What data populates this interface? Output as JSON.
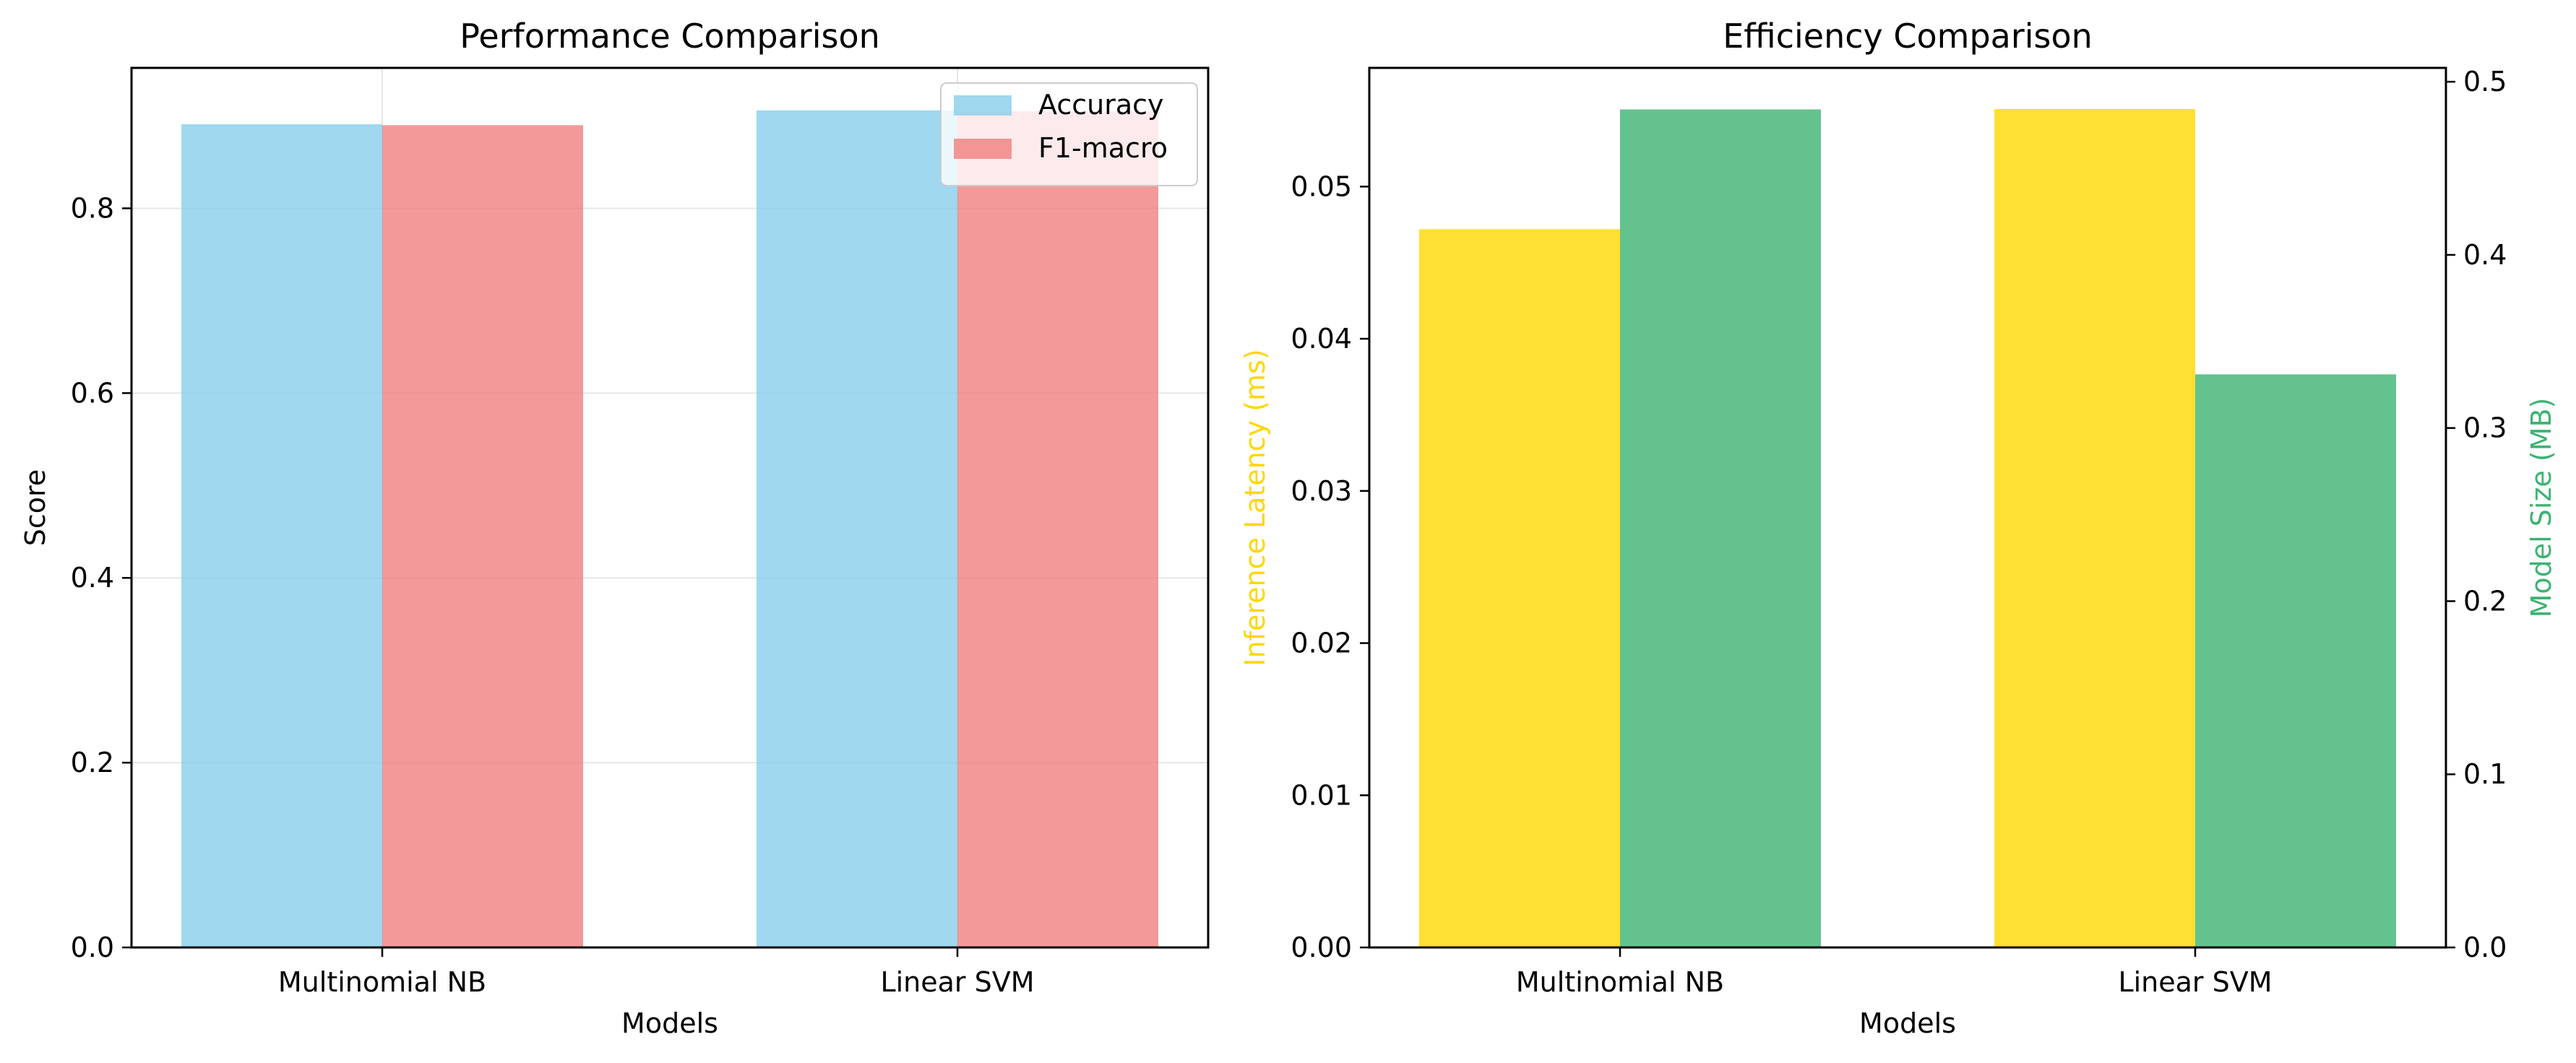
{
  "chart_data": [
    {
      "type": "bar",
      "title": "Performance Comparison",
      "xlabel": "Models",
      "ylabel": "Score",
      "categories": [
        "Multinomial NB",
        "Linear SVM"
      ],
      "series": [
        {
          "name": "Accuracy",
          "values": [
            0.891,
            0.906
          ],
          "color": "#87ceeb"
        },
        {
          "name": "F1-macro",
          "values": [
            0.89,
            0.905
          ],
          "color": "#f08080"
        }
      ],
      "ylim": [
        0,
        0.952
      ],
      "yticks": [
        "0.0",
        "0.2",
        "0.4",
        "0.6",
        "0.8"
      ],
      "ytick_values": [
        0,
        0.2,
        0.4,
        0.6,
        0.8
      ],
      "grid": true,
      "legend": "upper right"
    },
    {
      "type": "bar",
      "title": "Efficiency Comparison",
      "xlabel": "Models",
      "categories": [
        "Multinomial NB",
        "Linear SVM"
      ],
      "series": [
        {
          "name": "Inference Latency (ms)",
          "values": [
            0.0472,
            0.0551
          ],
          "color": "#ffd700",
          "axis": "left"
        },
        {
          "name": "Model Size (MB)",
          "values": [
            0.484,
            0.331
          ],
          "color": "#3cb371",
          "axis": "right"
        }
      ],
      "ylabel_left": "Inference Latency (ms)",
      "ylabel_right": "Model Size (MB)",
      "ylabel_left_color": "#ffd700",
      "ylabel_right_color": "#3cb371",
      "ylim_left": [
        0,
        0.0578
      ],
      "ylim_right": [
        0,
        0.508
      ],
      "yticks_left": [
        "0.00",
        "0.01",
        "0.02",
        "0.03",
        "0.04",
        "0.05"
      ],
      "ytick_values_left": [
        0,
        0.01,
        0.02,
        0.03,
        0.04,
        0.05
      ],
      "yticks_right": [
        "0.0",
        "0.1",
        "0.2",
        "0.3",
        "0.4",
        "0.5"
      ],
      "ytick_values_right": [
        0,
        0.1,
        0.2,
        0.3,
        0.4,
        0.5
      ],
      "grid": false
    }
  ]
}
